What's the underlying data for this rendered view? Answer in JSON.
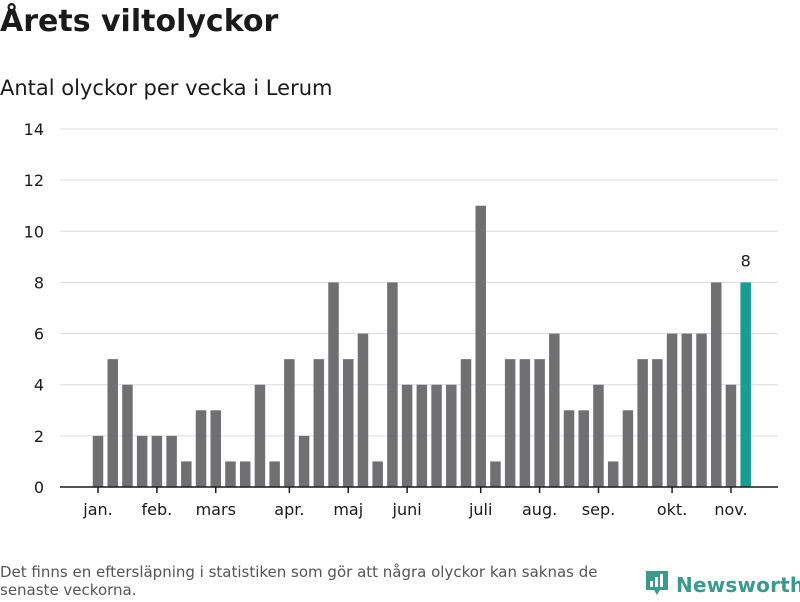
{
  "header": {
    "title": "Årets viltolyckor",
    "subtitle": "Antal olyckor per vecka i Lerum"
  },
  "footer": {
    "note": "Det finns en eftersläpning i statistiken som gör att några olyckor kan saknas de senaste veckorna.",
    "brand": "Newsworthy"
  },
  "colors": {
    "bar": "#707073",
    "highlight": "#169e94",
    "grid": "#dcdcdc",
    "axis": "#1a1a1a",
    "brand": "#3a9a8c"
  },
  "chart_data": {
    "type": "bar",
    "title": "Årets viltolyckor",
    "subtitle": "Antal olyckor per vecka i Lerum",
    "xlabel": "",
    "ylabel": "",
    "ylim": [
      0,
      14
    ],
    "yticks": [
      0,
      2,
      4,
      6,
      8,
      10,
      12,
      14
    ],
    "grid": true,
    "month_labels": [
      {
        "label": "jan.",
        "at_week": 1
      },
      {
        "label": "feb.",
        "at_week": 5
      },
      {
        "label": "mars",
        "at_week": 9
      },
      {
        "label": "apr.",
        "at_week": 14
      },
      {
        "label": "maj",
        "at_week": 18
      },
      {
        "label": "juni",
        "at_week": 22
      },
      {
        "label": "juli",
        "at_week": 27
      },
      {
        "label": "aug.",
        "at_week": 31
      },
      {
        "label": "sep.",
        "at_week": 35
      },
      {
        "label": "okt.",
        "at_week": 40
      },
      {
        "label": "nov.",
        "at_week": 44
      }
    ],
    "weeks": [
      1,
      2,
      3,
      4,
      5,
      6,
      7,
      8,
      9,
      10,
      11,
      12,
      13,
      14,
      15,
      16,
      17,
      18,
      19,
      20,
      21,
      22,
      23,
      24,
      25,
      26,
      27,
      28,
      29,
      30,
      31,
      32,
      33,
      34,
      35,
      36,
      37,
      38,
      39,
      40,
      41,
      42,
      43,
      44,
      45
    ],
    "values": [
      2,
      5,
      4,
      2,
      2,
      2,
      1,
      3,
      3,
      1,
      1,
      4,
      1,
      5,
      2,
      5,
      8,
      5,
      6,
      1,
      8,
      4,
      4,
      4,
      4,
      5,
      11,
      1,
      5,
      5,
      5,
      6,
      3,
      3,
      4,
      1,
      3,
      5,
      5,
      6,
      6,
      6,
      8,
      4,
      8
    ],
    "highlight_index": 44,
    "data_labels": [
      {
        "index": 44,
        "text": "8"
      }
    ]
  }
}
